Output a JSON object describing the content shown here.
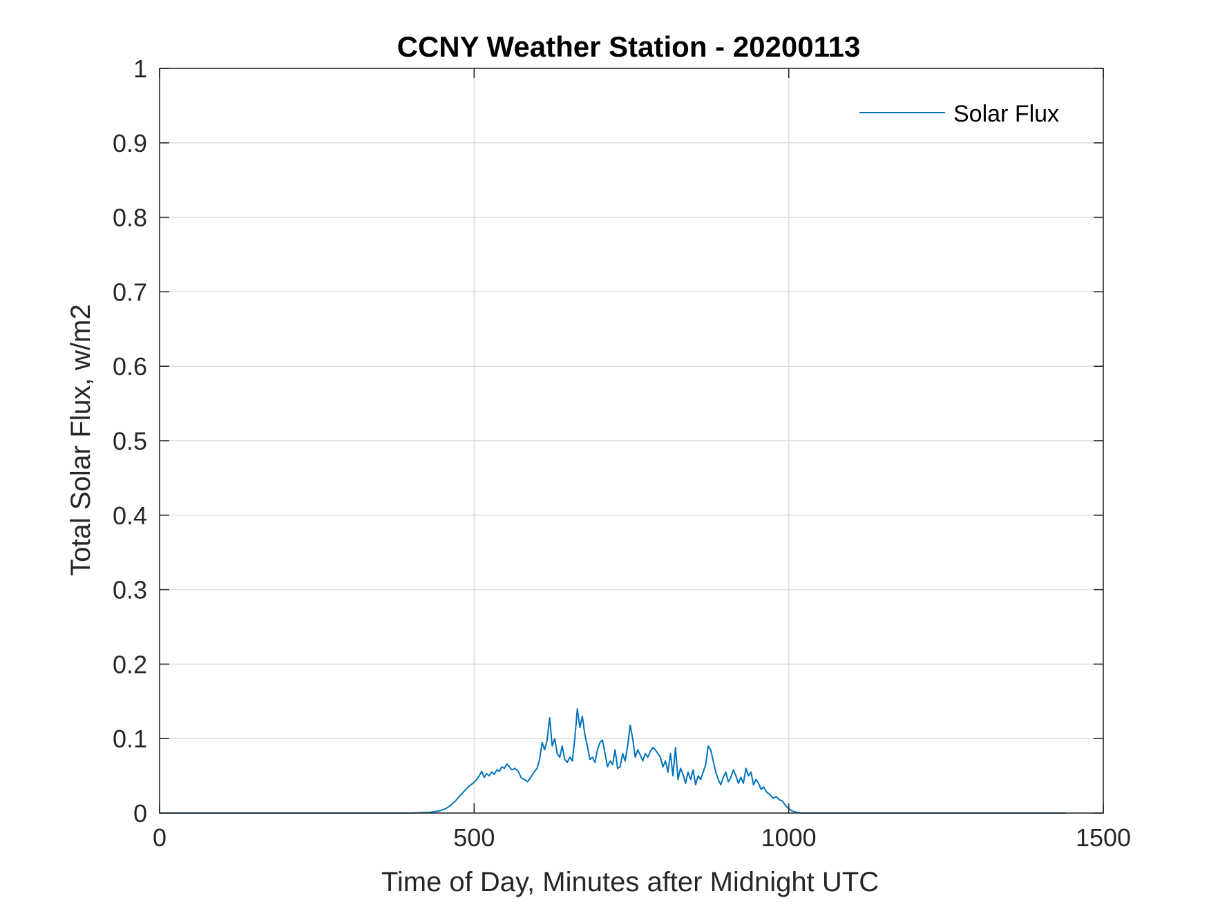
{
  "chart_data": {
    "type": "line",
    "title": "CCNY Weather Station - 20200113",
    "xlabel": "Time of Day, Minutes after Midnight UTC",
    "ylabel": "Total Solar Flux, w/m2",
    "xlim": [
      0,
      1500
    ],
    "ylim": [
      0,
      1
    ],
    "xticks": [
      0,
      500,
      1000,
      1500
    ],
    "xtick_labels": [
      "0",
      "500",
      "1000",
      "1500"
    ],
    "yticks": [
      0,
      0.1,
      0.2,
      0.3,
      0.4,
      0.5,
      0.6,
      0.7,
      0.8,
      0.9,
      1
    ],
    "ytick_labels": [
      "0",
      "0.1",
      "0.2",
      "0.3",
      "0.4",
      "0.5",
      "0.6",
      "0.7",
      "0.8",
      "0.9",
      "1"
    ],
    "grid": true,
    "legend_location": "top-right",
    "series": [
      {
        "name": "Solar Flux",
        "color": "#0072BD",
        "x": [
          0,
          100,
          200,
          300,
          400,
          430,
          445,
          455,
          462,
          470,
          478,
          485,
          492,
          498,
          503,
          508,
          512,
          516,
          520,
          524,
          528,
          532,
          536,
          540,
          544,
          548,
          552,
          556,
          560,
          565,
          570,
          575,
          580,
          585,
          590,
          595,
          600,
          604,
          608,
          612,
          616,
          620,
          624,
          628,
          632,
          636,
          640,
          644,
          648,
          652,
          656,
          660,
          664,
          668,
          672,
          676,
          680,
          684,
          688,
          692,
          696,
          700,
          704,
          708,
          712,
          716,
          720,
          724,
          728,
          732,
          736,
          740,
          744,
          748,
          752,
          756,
          760,
          764,
          768,
          772,
          776,
          780,
          784,
          788,
          792,
          796,
          800,
          804,
          808,
          812,
          816,
          820,
          824,
          828,
          832,
          836,
          840,
          844,
          848,
          852,
          856,
          860,
          864,
          868,
          872,
          876,
          880,
          884,
          888,
          892,
          896,
          900,
          904,
          908,
          912,
          916,
          920,
          924,
          928,
          932,
          936,
          940,
          944,
          948,
          952,
          956,
          960,
          965,
          970,
          975,
          980,
          985,
          990,
          995,
          1000,
          1005,
          1012,
          1020,
          1100,
          1200,
          1300,
          1440
        ],
        "y": [
          0,
          0,
          0,
          0,
          0,
          0.001,
          0.003,
          0.006,
          0.01,
          0.016,
          0.024,
          0.03,
          0.036,
          0.04,
          0.044,
          0.05,
          0.056,
          0.048,
          0.053,
          0.05,
          0.055,
          0.052,
          0.058,
          0.056,
          0.062,
          0.06,
          0.066,
          0.062,
          0.058,
          0.06,
          0.056,
          0.047,
          0.045,
          0.042,
          0.048,
          0.055,
          0.06,
          0.072,
          0.095,
          0.085,
          0.098,
          0.128,
          0.09,
          0.1,
          0.08,
          0.075,
          0.09,
          0.072,
          0.068,
          0.075,
          0.07,
          0.1,
          0.14,
          0.115,
          0.13,
          0.105,
          0.09,
          0.072,
          0.075,
          0.068,
          0.085,
          0.095,
          0.098,
          0.08,
          0.062,
          0.07,
          0.065,
          0.085,
          0.06,
          0.062,
          0.08,
          0.07,
          0.09,
          0.118,
          0.1,
          0.075,
          0.085,
          0.078,
          0.07,
          0.08,
          0.075,
          0.083,
          0.088,
          0.085,
          0.08,
          0.075,
          0.062,
          0.07,
          0.055,
          0.08,
          0.05,
          0.088,
          0.045,
          0.06,
          0.052,
          0.04,
          0.055,
          0.045,
          0.058,
          0.038,
          0.05,
          0.045,
          0.055,
          0.065,
          0.09,
          0.085,
          0.07,
          0.055,
          0.045,
          0.038,
          0.048,
          0.055,
          0.042,
          0.048,
          0.058,
          0.05,
          0.04,
          0.048,
          0.04,
          0.06,
          0.05,
          0.055,
          0.038,
          0.045,
          0.04,
          0.032,
          0.035,
          0.028,
          0.025,
          0.02,
          0.022,
          0.018,
          0.016,
          0.01,
          0.006,
          0.003,
          0.001,
          0,
          0,
          0,
          0,
          0
        ]
      }
    ]
  }
}
